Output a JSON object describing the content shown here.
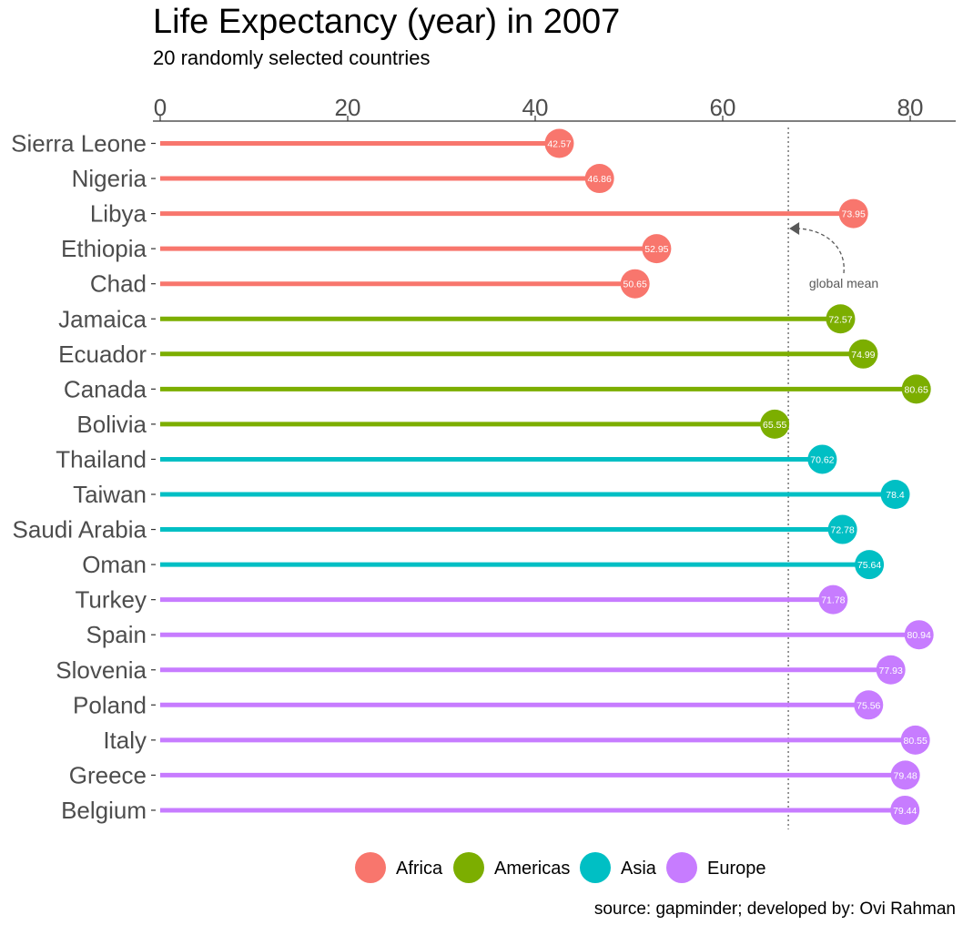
{
  "chart_data": {
    "type": "lollipop",
    "title": "Life Expectancy (year) in 2007",
    "subtitle": "20 randomly selected countries",
    "caption": "source: gapminder; developed by: Ovi Rahman",
    "xlim": [
      0,
      85
    ],
    "x_ticks": [
      0,
      20,
      40,
      60,
      80
    ],
    "x_axis_position": "top",
    "grid": false,
    "legend_position": "bottom",
    "mean_line": {
      "value": 67.0,
      "label": "global mean"
    },
    "groups": [
      {
        "name": "Africa",
        "color": "#F8766D"
      },
      {
        "name": "Americas",
        "color": "#7CAE00"
      },
      {
        "name": "Asia",
        "color": "#00BFC4"
      },
      {
        "name": "Europe",
        "color": "#C77CFF"
      }
    ],
    "points": [
      {
        "country": "Sierra Leone",
        "group": "Africa",
        "value": 42.57,
        "label": "42.57"
      },
      {
        "country": "Nigeria",
        "group": "Africa",
        "value": 46.86,
        "label": "46.86"
      },
      {
        "country": "Libya",
        "group": "Africa",
        "value": 73.95,
        "label": "73.95"
      },
      {
        "country": "Ethiopia",
        "group": "Africa",
        "value": 52.95,
        "label": "52.95"
      },
      {
        "country": "Chad",
        "group": "Africa",
        "value": 50.65,
        "label": "50.65"
      },
      {
        "country": "Jamaica",
        "group": "Americas",
        "value": 72.57,
        "label": "72.57"
      },
      {
        "country": "Ecuador",
        "group": "Americas",
        "value": 74.99,
        "label": "74.99"
      },
      {
        "country": "Canada",
        "group": "Americas",
        "value": 80.65,
        "label": "80.65"
      },
      {
        "country": "Bolivia",
        "group": "Americas",
        "value": 65.55,
        "label": "65.55"
      },
      {
        "country": "Thailand",
        "group": "Asia",
        "value": 70.62,
        "label": "70.62"
      },
      {
        "country": "Taiwan",
        "group": "Asia",
        "value": 78.4,
        "label": "78.4"
      },
      {
        "country": "Saudi Arabia",
        "group": "Asia",
        "value": 72.78,
        "label": "72.78"
      },
      {
        "country": "Oman",
        "group": "Asia",
        "value": 75.64,
        "label": "75.64"
      },
      {
        "country": "Turkey",
        "group": "Europe",
        "value": 71.78,
        "label": "71.78"
      },
      {
        "country": "Spain",
        "group": "Europe",
        "value": 80.94,
        "label": "80.94"
      },
      {
        "country": "Slovenia",
        "group": "Europe",
        "value": 77.93,
        "label": "77.93"
      },
      {
        "country": "Poland",
        "group": "Europe",
        "value": 75.56,
        "label": "75.56"
      },
      {
        "country": "Italy",
        "group": "Europe",
        "value": 80.55,
        "label": "80.55"
      },
      {
        "country": "Greece",
        "group": "Europe",
        "value": 79.48,
        "label": "79.48"
      },
      {
        "country": "Belgium",
        "group": "Europe",
        "value": 79.44,
        "label": "79.44"
      }
    ]
  }
}
